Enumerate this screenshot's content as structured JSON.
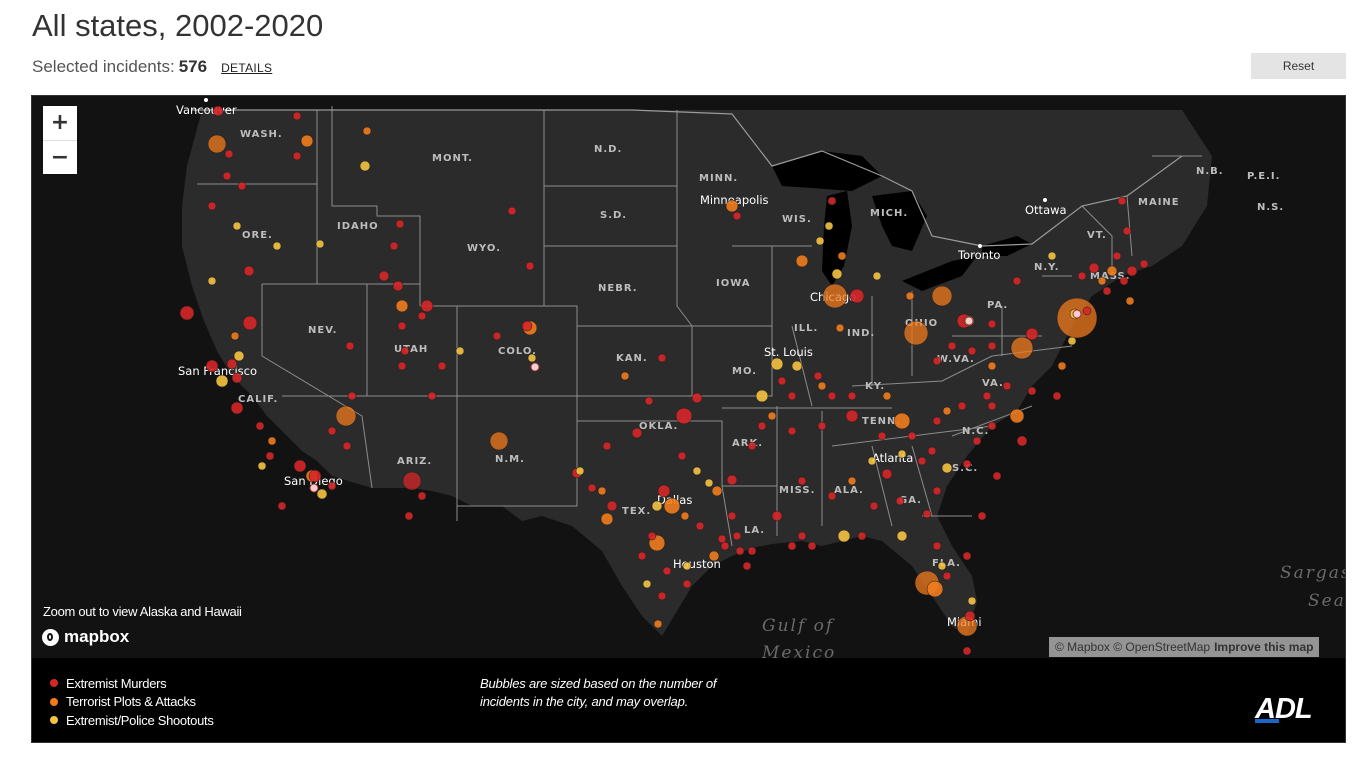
{
  "header": {
    "title": "All states, 2002-2020",
    "selected_label": "Selected incidents:",
    "selected_count": "576",
    "details_label": "DETAILS",
    "reset_label": "Reset"
  },
  "zoom_controls": {
    "zoom_in": "+",
    "zoom_out": "−"
  },
  "map": {
    "base_color": "#121212",
    "land_color": "#2b2b2b",
    "border_color": "#8c8c8c",
    "water_color": "#000000",
    "state_labels": [
      "WASH.",
      "ORE.",
      "IDAHO",
      "MONT.",
      "WYO.",
      "NEV.",
      "UTAH",
      "COLO.",
      "CALIF.",
      "ARIZ.",
      "N.M.",
      "N.D.",
      "S.D.",
      "NEBR.",
      "KAN.",
      "OKLA.",
      "TEX.",
      "MINN.",
      "IOWA",
      "MO.",
      "ARK.",
      "LA.",
      "WIS.",
      "ILL.",
      "MICH.",
      "IND.",
      "OHIO",
      "KY.",
      "TENN.",
      "MISS.",
      "ALA.",
      "GA.",
      "FLA.",
      "S.C.",
      "N.C.",
      "VA.",
      "W.VA.",
      "PA.",
      "N.Y.",
      "VT.",
      "MASS.",
      "MAINE",
      "N.B.",
      "P.E.I.",
      "N.S."
    ],
    "city_labels": [
      "Vancouver",
      "Minneapolis",
      "Ottawa",
      "Toronto",
      "Chicago",
      "St. Louis",
      "San Francisco",
      "San Diego",
      "Dallas",
      "Houston",
      "Atlanta",
      "Miami"
    ],
    "water_labels": [
      "Gulf of",
      "Mexico",
      "Sargas",
      "Sea"
    ],
    "zoom_note": "Zoom out to view Alaska and Hawaii",
    "logo": "mapbox",
    "attribution": "© Mapbox © OpenStreetMap",
    "improve_link": "Improve this map"
  },
  "legend": {
    "items": [
      {
        "label": "Extremist Murders",
        "color": "#d62728"
      },
      {
        "label": "Terrorist Plots & Attacks",
        "color": "#f07b1d"
      },
      {
        "label": "Extremist/Police Shootouts",
        "color": "#f5c342"
      }
    ],
    "caption": "Bubbles are sized based on the number of incidents in the city, and may overlap.",
    "brand": "ADL"
  }
}
